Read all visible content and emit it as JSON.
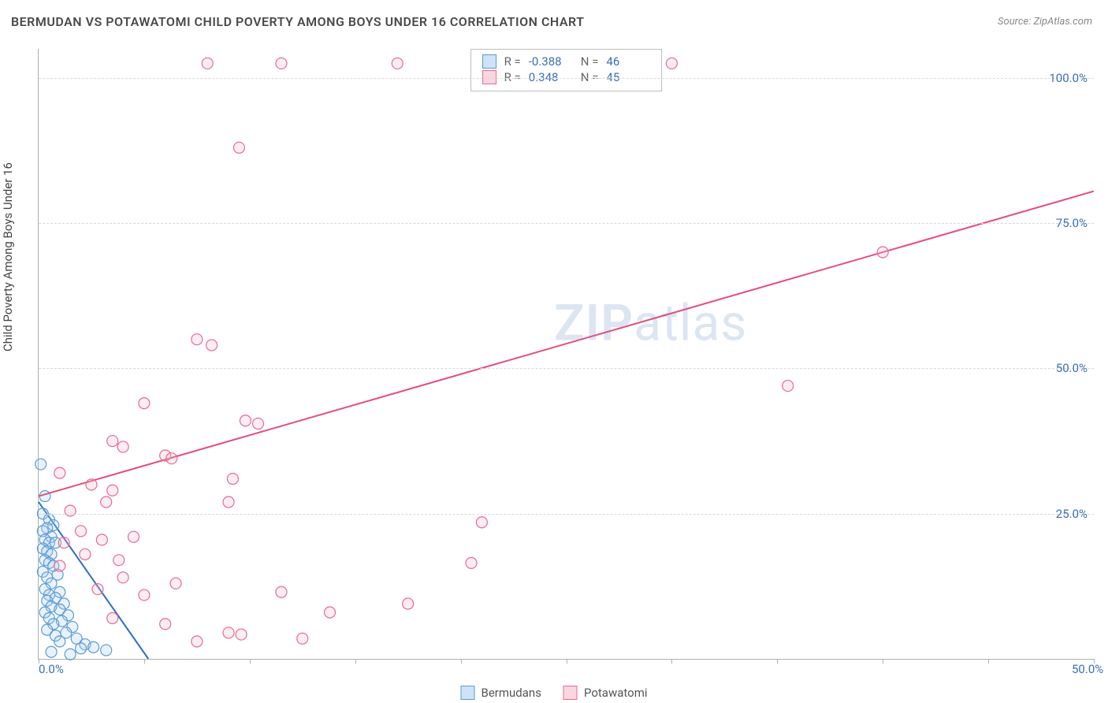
{
  "title": "BERMUDAN VS POTAWATOMI CHILD POVERTY AMONG BOYS UNDER 16 CORRELATION CHART",
  "source_label": "Source:",
  "source_value": "ZipAtlas.com",
  "watermark_a": "ZIP",
  "watermark_b": "atlas",
  "y_axis_title": "Child Poverty Among Boys Under 16",
  "chart": {
    "type": "scatter",
    "xlim": [
      0,
      50
    ],
    "ylim": [
      0,
      105
    ],
    "x_ticks": [
      0,
      5,
      10,
      15,
      20,
      25,
      30,
      35,
      40,
      45,
      50
    ],
    "x_tick_labels": {
      "0": "0.0%",
      "50": "50.0%"
    },
    "y_gridlines": [
      25,
      50,
      75,
      100
    ],
    "y_tick_labels": {
      "25": "25.0%",
      "50": "50.0%",
      "75": "75.0%",
      "100": "100.0%"
    },
    "background_color": "#ffffff",
    "grid_color": "#d8d8d8",
    "axis_color": "#b0b0b0",
    "tick_label_color": "#3b6fb6",
    "marker_radius": 7,
    "marker_stroke_width": 1.2,
    "fill_opacity": 0.25,
    "series": [
      {
        "name": "Bermudans",
        "stroke": "#5a9bd5",
        "fill": "#a8cbec",
        "line_color": "#2e6fc0",
        "line_width": 2,
        "r": -0.388,
        "n": 46,
        "trend": {
          "x1": 0,
          "y1": 27,
          "x2": 5.2,
          "y2": 0
        },
        "points": [
          [
            0.1,
            33.5
          ],
          [
            0.3,
            28
          ],
          [
            0.2,
            25
          ],
          [
            0.5,
            24
          ],
          [
            0.7,
            23
          ],
          [
            0.4,
            22.5
          ],
          [
            0.2,
            22
          ],
          [
            0.6,
            21
          ],
          [
            0.3,
            20.5
          ],
          [
            0.5,
            20
          ],
          [
            0.8,
            20
          ],
          [
            0.2,
            19
          ],
          [
            0.4,
            18.5
          ],
          [
            0.6,
            18
          ],
          [
            0.3,
            17
          ],
          [
            0.5,
            16.5
          ],
          [
            0.7,
            16
          ],
          [
            0.2,
            15
          ],
          [
            0.9,
            14.5
          ],
          [
            0.4,
            14
          ],
          [
            0.6,
            13
          ],
          [
            0.3,
            12
          ],
          [
            1.0,
            11.5
          ],
          [
            0.5,
            11
          ],
          [
            0.8,
            10.5
          ],
          [
            0.4,
            10
          ],
          [
            1.2,
            9.5
          ],
          [
            0.6,
            9
          ],
          [
            1.0,
            8.5
          ],
          [
            0.3,
            8
          ],
          [
            1.4,
            7.5
          ],
          [
            0.5,
            7
          ],
          [
            1.1,
            6.5
          ],
          [
            0.7,
            6
          ],
          [
            1.6,
            5.5
          ],
          [
            0.4,
            5
          ],
          [
            1.3,
            4.5
          ],
          [
            0.8,
            4
          ],
          [
            1.8,
            3.5
          ],
          [
            1.0,
            3
          ],
          [
            2.2,
            2.5
          ],
          [
            2.6,
            2
          ],
          [
            2.0,
            1.8
          ],
          [
            3.2,
            1.5
          ],
          [
            0.6,
            1.2
          ],
          [
            1.5,
            0.8
          ]
        ]
      },
      {
        "name": "Potawatomi",
        "stroke": "#e86a8f",
        "fill": "#f5b8ca",
        "line_color": "#e54d7a",
        "line_width": 2,
        "r": 0.348,
        "n": 45,
        "trend": {
          "x1": 0,
          "y1": 28,
          "x2": 50,
          "y2": 80.5
        },
        "points": [
          [
            8.0,
            102.5
          ],
          [
            11.5,
            102.5
          ],
          [
            17.0,
            102.5
          ],
          [
            30.0,
            102.5
          ],
          [
            9.5,
            88
          ],
          [
            40.0,
            70
          ],
          [
            7.5,
            55
          ],
          [
            8.2,
            54
          ],
          [
            35.5,
            47
          ],
          [
            5.0,
            44
          ],
          [
            9.8,
            41
          ],
          [
            10.4,
            40.5
          ],
          [
            3.5,
            37.5
          ],
          [
            4.0,
            36.5
          ],
          [
            6.0,
            35
          ],
          [
            6.3,
            34.5
          ],
          [
            1.0,
            32
          ],
          [
            9.2,
            31
          ],
          [
            2.5,
            30
          ],
          [
            3.5,
            29
          ],
          [
            3.2,
            27
          ],
          [
            9.0,
            27
          ],
          [
            1.5,
            25.5
          ],
          [
            21.0,
            23.5
          ],
          [
            2.0,
            22
          ],
          [
            3.0,
            20.5
          ],
          [
            4.5,
            21
          ],
          [
            1.2,
            20
          ],
          [
            2.2,
            18
          ],
          [
            3.8,
            17
          ],
          [
            1.0,
            16
          ],
          [
            20.5,
            16.5
          ],
          [
            4.0,
            14
          ],
          [
            6.5,
            13
          ],
          [
            2.8,
            12
          ],
          [
            11.5,
            11.5
          ],
          [
            5.0,
            11
          ],
          [
            17.5,
            9.5
          ],
          [
            13.8,
            8
          ],
          [
            3.5,
            7
          ],
          [
            6.0,
            6
          ],
          [
            9.0,
            4.5
          ],
          [
            9.6,
            4.2
          ],
          [
            12.5,
            3.5
          ],
          [
            7.5,
            3
          ]
        ]
      }
    ]
  },
  "stats_labels": {
    "r": "R =",
    "n": "N ="
  },
  "legend": [
    {
      "label": "Bermudans",
      "stroke": "#5a9bd5",
      "fill": "#cfe3f6"
    },
    {
      "label": "Potawatomi",
      "stroke": "#e86a8f",
      "fill": "#f9d6e0"
    }
  ]
}
